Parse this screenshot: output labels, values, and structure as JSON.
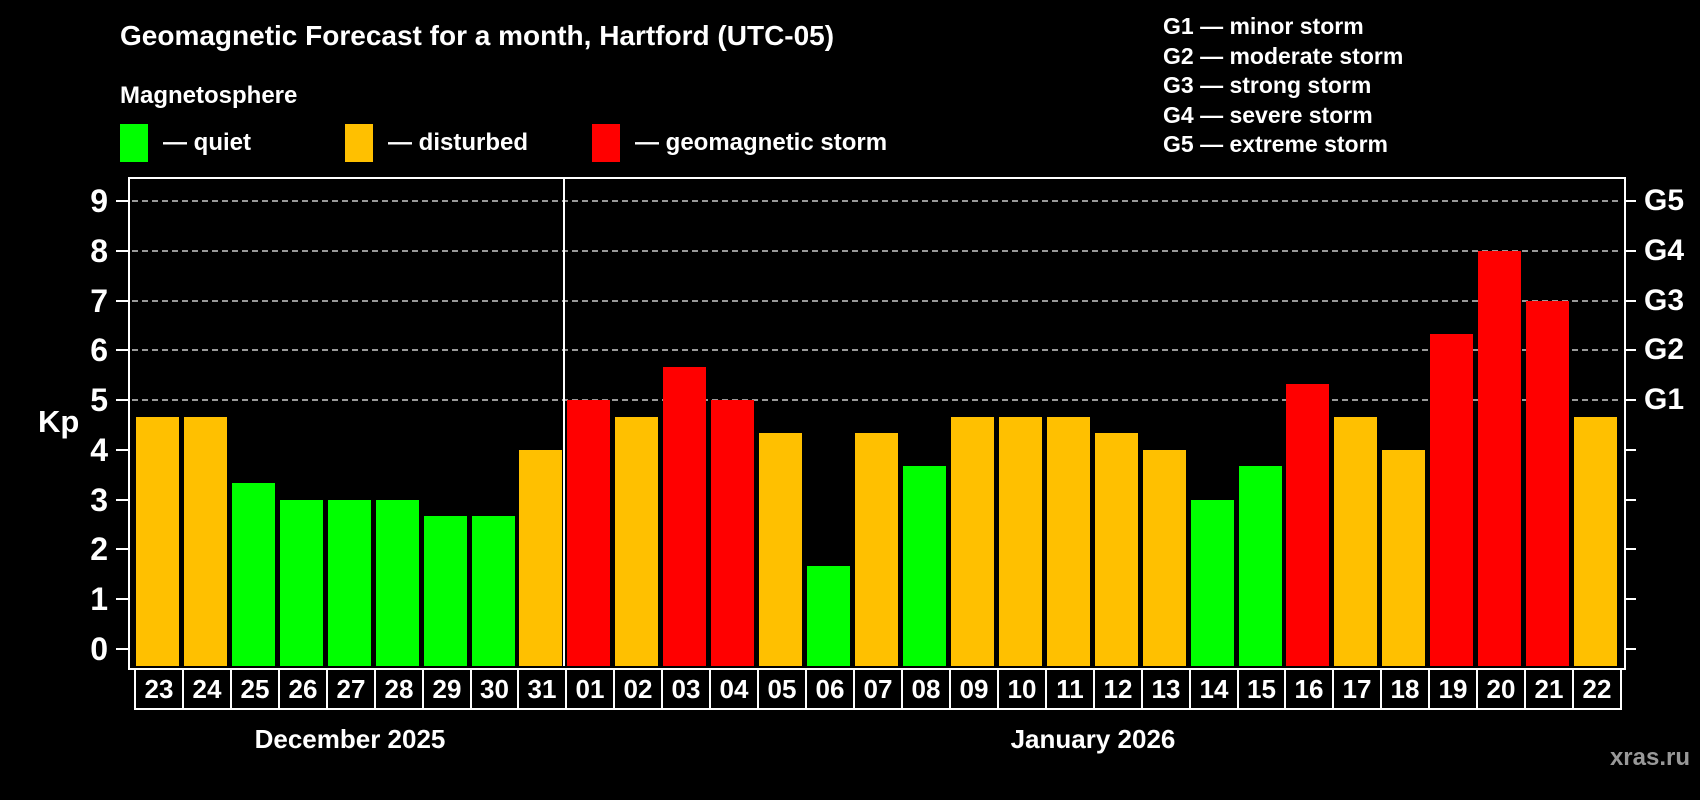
{
  "title": "Geomagnetic Forecast for a month, Hartford (UTC-05)",
  "subtitle": "Magnetosphere",
  "legend": [
    {
      "key": "quiet",
      "label": "— quiet",
      "color": "#00FF00"
    },
    {
      "key": "disturbed",
      "label": "— disturbed",
      "color": "#FFC000"
    },
    {
      "key": "storm",
      "label": "— geomagnetic storm",
      "color": "#FF0000"
    }
  ],
  "g_legend": [
    "G1 — minor storm",
    "G2 — moderate storm",
    "G3 — strong storm",
    "G4 — severe storm",
    "G5 — extreme storm"
  ],
  "watermark": "xras.ru",
  "chart_data": {
    "type": "bar",
    "title": "Geomagnetic Forecast for a month, Hartford (UTC-05)",
    "xlabel": "",
    "ylabel": "Kp",
    "ylim": [
      -0.35,
      9.45
    ],
    "y_ticks": [
      0,
      1,
      2,
      3,
      4,
      5,
      6,
      7,
      8,
      9
    ],
    "gridlines_at": [
      5,
      6,
      7,
      8,
      9
    ],
    "grid": "dashed, horizontal only, Kp 5-9",
    "legend_position": "top",
    "right_axis_labels": [
      {
        "value": 5,
        "label": "G1"
      },
      {
        "value": 6,
        "label": "G2"
      },
      {
        "value": 7,
        "label": "G3"
      },
      {
        "value": 8,
        "label": "G4"
      },
      {
        "value": 9,
        "label": "G5"
      }
    ],
    "months": [
      {
        "name": "December 2025",
        "days": 9
      },
      {
        "name": "January 2026",
        "days": 22
      }
    ],
    "categories": [
      "23",
      "24",
      "25",
      "26",
      "27",
      "28",
      "29",
      "30",
      "31",
      "01",
      "02",
      "03",
      "04",
      "05",
      "06",
      "07",
      "08",
      "09",
      "10",
      "11",
      "12",
      "13",
      "14",
      "15",
      "16",
      "17",
      "18",
      "19",
      "20",
      "21",
      "22"
    ],
    "values": [
      4.67,
      4.67,
      3.33,
      3.0,
      3.0,
      3.0,
      2.67,
      2.67,
      4.0,
      5.0,
      4.67,
      5.67,
      5.0,
      4.33,
      1.67,
      4.33,
      3.67,
      4.67,
      4.67,
      4.67,
      4.33,
      4.0,
      3.0,
      3.67,
      5.33,
      4.67,
      4.0,
      6.33,
      8.0,
      7.0,
      4.67
    ],
    "statuses": [
      "disturbed",
      "disturbed",
      "quiet",
      "quiet",
      "quiet",
      "quiet",
      "quiet",
      "quiet",
      "disturbed",
      "storm",
      "disturbed",
      "storm",
      "storm",
      "disturbed",
      "quiet",
      "disturbed",
      "quiet",
      "disturbed",
      "disturbed",
      "disturbed",
      "disturbed",
      "disturbed",
      "quiet",
      "quiet",
      "storm",
      "disturbed",
      "disturbed",
      "storm",
      "storm",
      "storm",
      "disturbed"
    ],
    "status_colors": {
      "quiet": "#00FF00",
      "disturbed": "#FFC000",
      "storm": "#FF0000"
    }
  }
}
